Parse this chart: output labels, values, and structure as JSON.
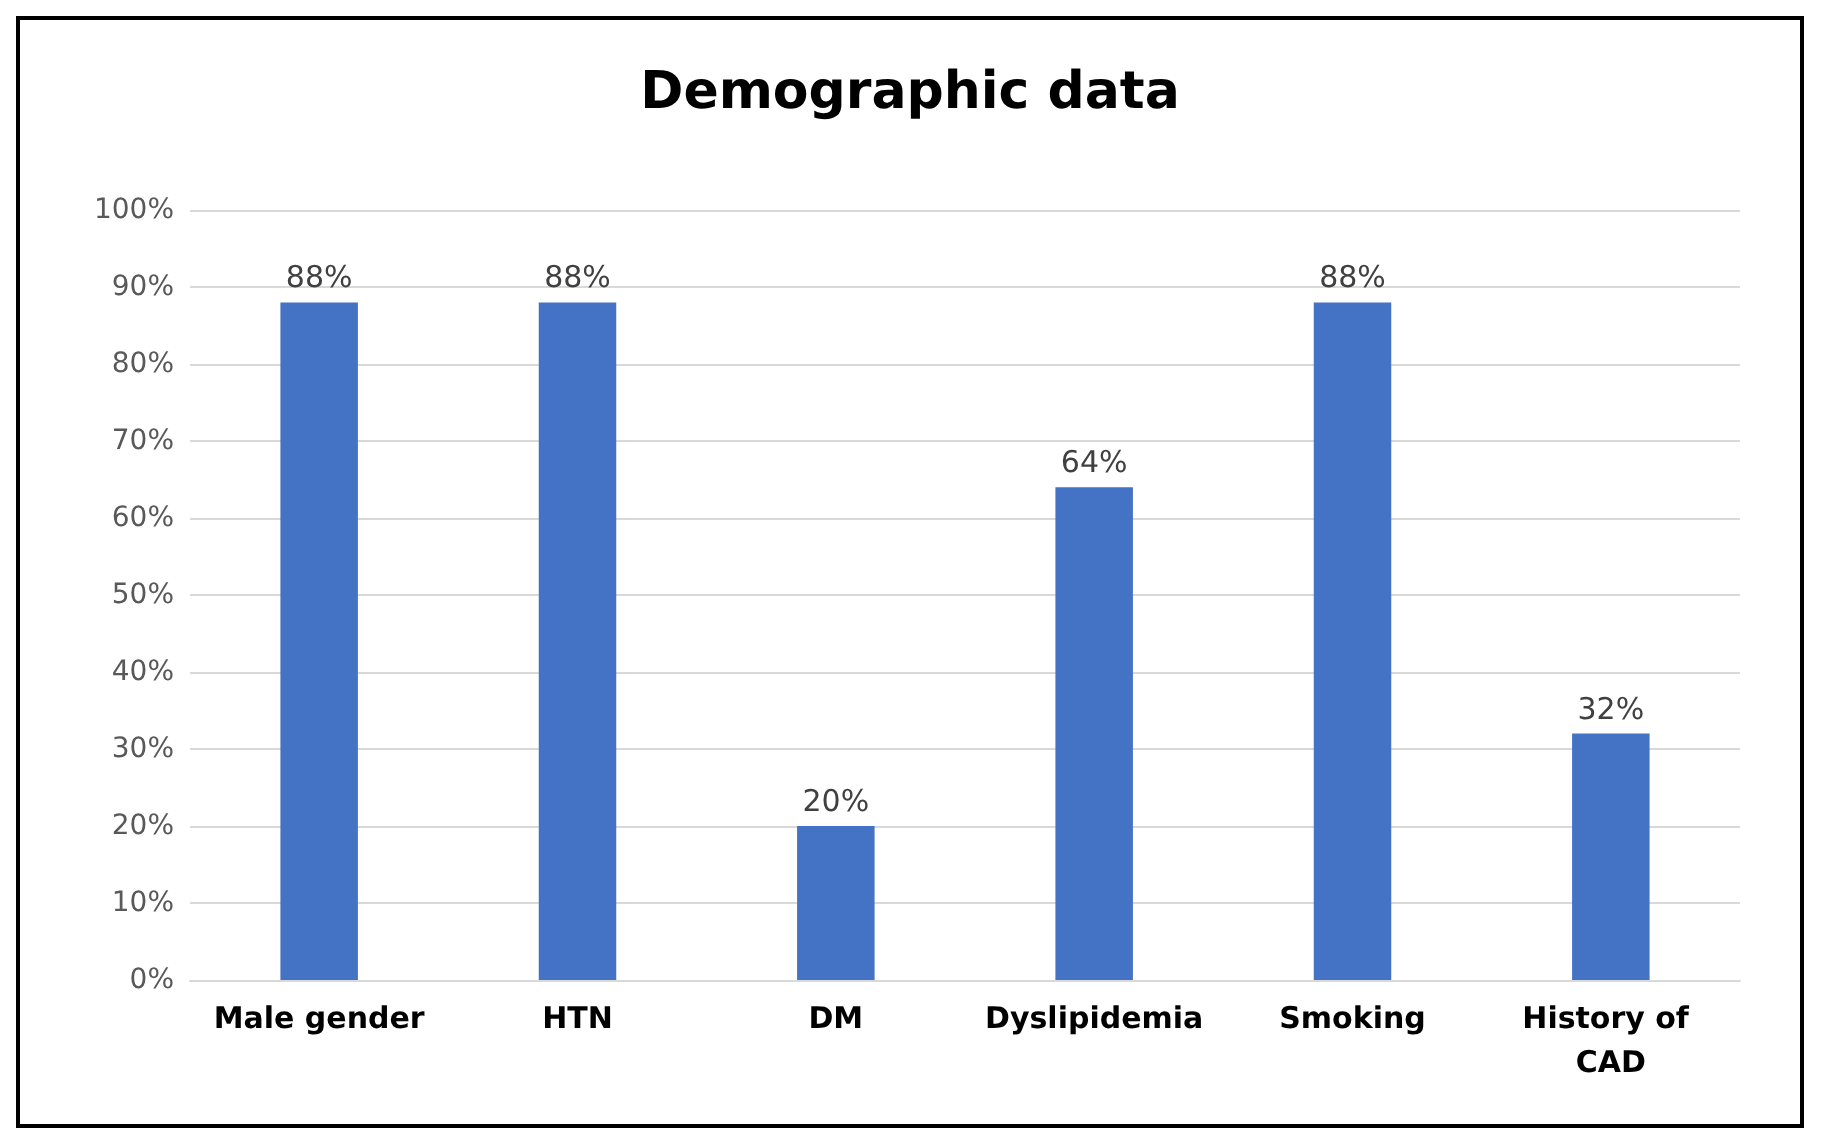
{
  "chart_data": {
    "type": "bar",
    "title": "Demographic data",
    "categories": [
      "Male gender",
      "HTN",
      "DM",
      "Dyslipidemia",
      "Smoking",
      "History of CAD"
    ],
    "values": [
      88,
      88,
      20,
      64,
      88,
      32
    ],
    "value_labels": [
      "88%",
      "88%",
      "20%",
      "64%",
      "88%",
      "32%"
    ],
    "color": "#4472c4",
    "ylim": [
      0,
      100
    ],
    "yticks": [
      {
        "value": 0,
        "label": "0%"
      },
      {
        "value": 10,
        "label": "10%"
      },
      {
        "value": 20,
        "label": "20%"
      },
      {
        "value": 30,
        "label": "30%"
      },
      {
        "value": 40,
        "label": "40%"
      },
      {
        "value": 50,
        "label": "50%"
      },
      {
        "value": 60,
        "label": "60%"
      },
      {
        "value": 70,
        "label": "70%"
      },
      {
        "value": 80,
        "label": "80%"
      },
      {
        "value": 90,
        "label": "90%"
      },
      {
        "value": 100,
        "label": "100%"
      }
    ],
    "grid": "y"
  }
}
